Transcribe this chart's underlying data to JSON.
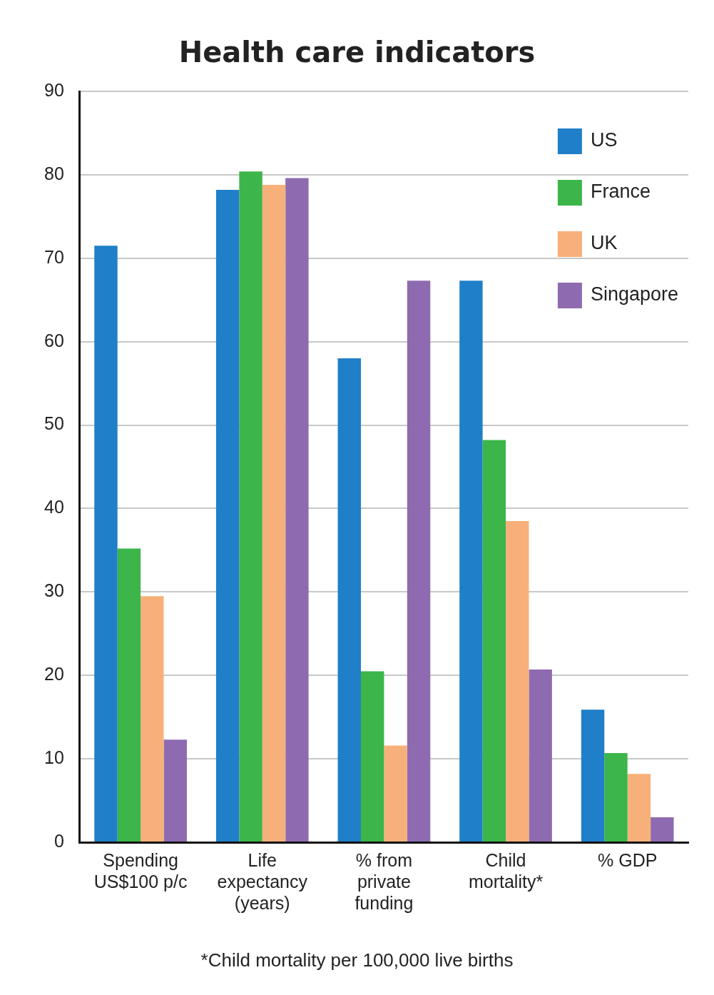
{
  "chart_data": {
    "type": "bar",
    "title": "Health care indicators",
    "categories": [
      "Spending US$100 p/c",
      "Life expectancy (years)",
      "% from private funding",
      "Child mortality*",
      "% GDP"
    ],
    "series": [
      {
        "name": "US",
        "color": "#1f7fc8",
        "values": [
          71.5,
          78.2,
          58,
          67.3,
          15.9
        ]
      },
      {
        "name": "France",
        "color": "#3cb54a",
        "values": [
          35.2,
          80.4,
          20.5,
          48.2,
          10.7
        ]
      },
      {
        "name": "UK",
        "color": "#f7b07a",
        "values": [
          29.5,
          78.8,
          11.6,
          38.5,
          8.2
        ]
      },
      {
        "name": "Singapore",
        "color": "#8e6bb0",
        "values": [
          12.3,
          79.6,
          67.3,
          20.7,
          3
        ]
      }
    ],
    "ylim": [
      0,
      90
    ],
    "yticks": [
      0,
      10,
      20,
      30,
      40,
      50,
      60,
      70,
      80,
      90
    ],
    "grid": "y",
    "legend": "top right",
    "annotations": [
      "*Child mortality per 100,000 live births"
    ]
  }
}
